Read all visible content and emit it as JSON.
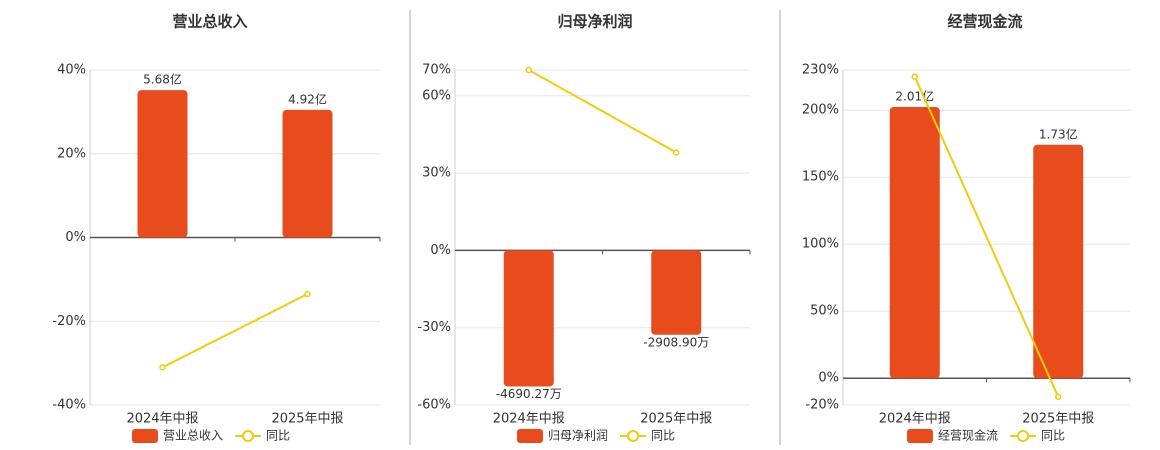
{
  "chart_data": [
    {
      "type": "bar",
      "title": "营业总收入",
      "categories": [
        "2024年中报",
        "2025年中报"
      ],
      "ylim": [
        -40,
        40
      ],
      "yticks": [
        {
          "value": -40,
          "label": "-40%"
        },
        {
          "value": -20,
          "label": "-20%"
        },
        {
          "value": 0,
          "label": "0%"
        },
        {
          "value": 20,
          "label": "20%"
        },
        {
          "value": 40,
          "label": "40%"
        }
      ],
      "grid": true,
      "series": [
        {
          "name": "营业总收入",
          "type": "bar",
          "color": "#e84c1c",
          "values": [
            5.68,
            4.92
          ],
          "value_labels": [
            "5.68亿",
            "4.92亿"
          ]
        },
        {
          "name": "同比",
          "type": "line",
          "color": "#f2cc0c",
          "values": [
            -31,
            -13.5
          ]
        }
      ]
    },
    {
      "type": "bar",
      "title": "归母净利润",
      "categories": [
        "2024年中报",
        "2025年中报"
      ],
      "ylim": [
        -60,
        70
      ],
      "yticks": [
        {
          "value": -60,
          "label": "-60%"
        },
        {
          "value": -30,
          "label": "-30%"
        },
        {
          "value": 0,
          "label": "0%"
        },
        {
          "value": 30,
          "label": "30%"
        },
        {
          "value": 60,
          "label": "60%"
        },
        {
          "value": 70,
          "label": "70%"
        }
      ],
      "grid": true,
      "series": [
        {
          "name": "归母净利润",
          "type": "bar",
          "color": "#e84c1c",
          "values": [
            -4690.27,
            -2908.9
          ],
          "value_labels": [
            "-4690.27万",
            "-2908.90万"
          ]
        },
        {
          "name": "同比",
          "type": "line",
          "color": "#f2cc0c",
          "values": [
            70,
            38
          ]
        }
      ]
    },
    {
      "type": "bar",
      "title": "经营现金流",
      "categories": [
        "2024年中报",
        "2025年中报"
      ],
      "ylim": [
        -20,
        230
      ],
      "yticks": [
        {
          "value": -20,
          "label": "-20%"
        },
        {
          "value": 0,
          "label": "0%"
        },
        {
          "value": 50,
          "label": "50%"
        },
        {
          "value": 100,
          "label": "100%"
        },
        {
          "value": 150,
          "label": "150%"
        },
        {
          "value": 200,
          "label": "200%"
        },
        {
          "value": 230,
          "label": "230%"
        }
      ],
      "grid": true,
      "series": [
        {
          "name": "经营现金流",
          "type": "bar",
          "color": "#e84c1c",
          "values": [
            2.01,
            1.73
          ],
          "value_labels": [
            "2.01亿",
            "1.73亿"
          ]
        },
        {
          "name": "同比",
          "type": "line",
          "color": "#f2cc0c",
          "values": [
            225,
            -14
          ]
        }
      ]
    }
  ]
}
